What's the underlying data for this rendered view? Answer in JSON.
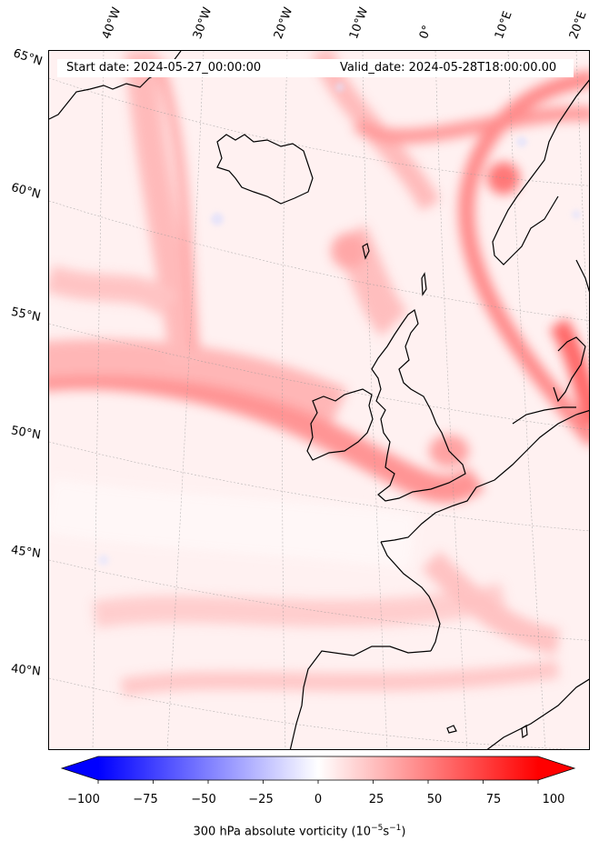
{
  "map": {
    "start_date_text": "Start date: 2024-05-27_00:00:00",
    "valid_date_text": "Valid_date: 2024-05-28T18:00:00.00",
    "longitude_labels": [
      "40°W",
      "30°W",
      "20°W",
      "10°W",
      "0°",
      "10°E",
      "20°E"
    ],
    "latitude_labels": [
      "65°N",
      "60°N",
      "55°N",
      "50°N",
      "45°N",
      "40°N"
    ],
    "field": "300 hPa absolute vorticity",
    "projection_gridlines": "dashed grey graticule"
  },
  "colorbar": {
    "ticks": [
      "−100",
      "−75",
      "−50",
      "−25",
      "0",
      "25",
      "50",
      "75",
      "100"
    ],
    "min": -100,
    "max": 100,
    "label_main": "300 hPa absolute vorticity (10",
    "label_exp1": "−5",
    "label_mid": "s",
    "label_exp2": "−1",
    "label_end": ")",
    "extend": "both",
    "colormap": "bwr",
    "low_color": "#0000ff",
    "mid_color": "#ffffff",
    "high_color": "#ff0000"
  }
}
